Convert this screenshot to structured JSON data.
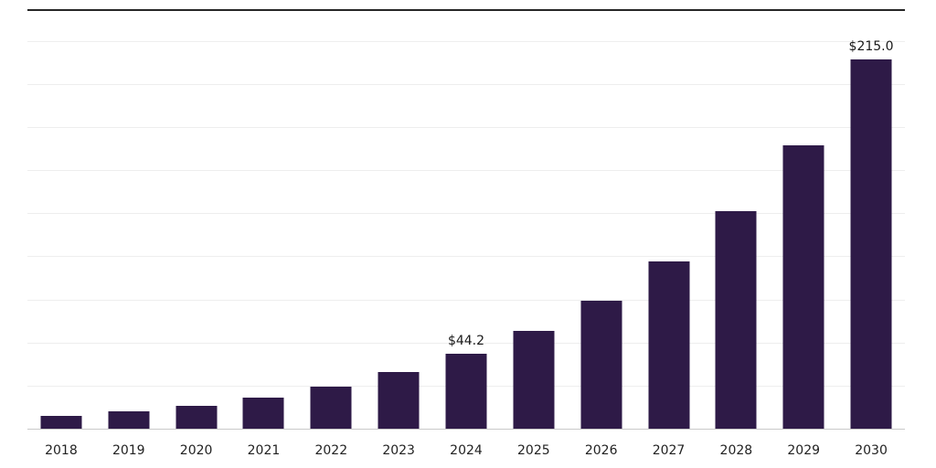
{
  "chart_data": {
    "type": "bar",
    "title": "",
    "xlabel": "",
    "ylabel": "",
    "categories": [
      "2018",
      "2019",
      "2020",
      "2021",
      "2022",
      "2023",
      "2024",
      "2025",
      "2026",
      "2027",
      "2028",
      "2029",
      "2030"
    ],
    "values": [
      8.0,
      10.5,
      13.8,
      18.5,
      24.8,
      33.5,
      44.2,
      57.5,
      74.9,
      97.5,
      126.9,
      165.2,
      215.0
    ],
    "data_labels": {
      "2024": "$44.2",
      "2030": "$215.0"
    },
    "ylim": [
      0,
      244
    ],
    "gridline_interval": 25,
    "grid": "horizontal",
    "legend": "none",
    "bar_color": "#2e1a47",
    "value_label_color": "#1a1a1a",
    "tick_label_color": "#222222",
    "gridline_color": "#eeeeee",
    "axis_line_color": "#c9c9c9",
    "top_border_color": "#262626",
    "background_color": "#ffffff"
  }
}
